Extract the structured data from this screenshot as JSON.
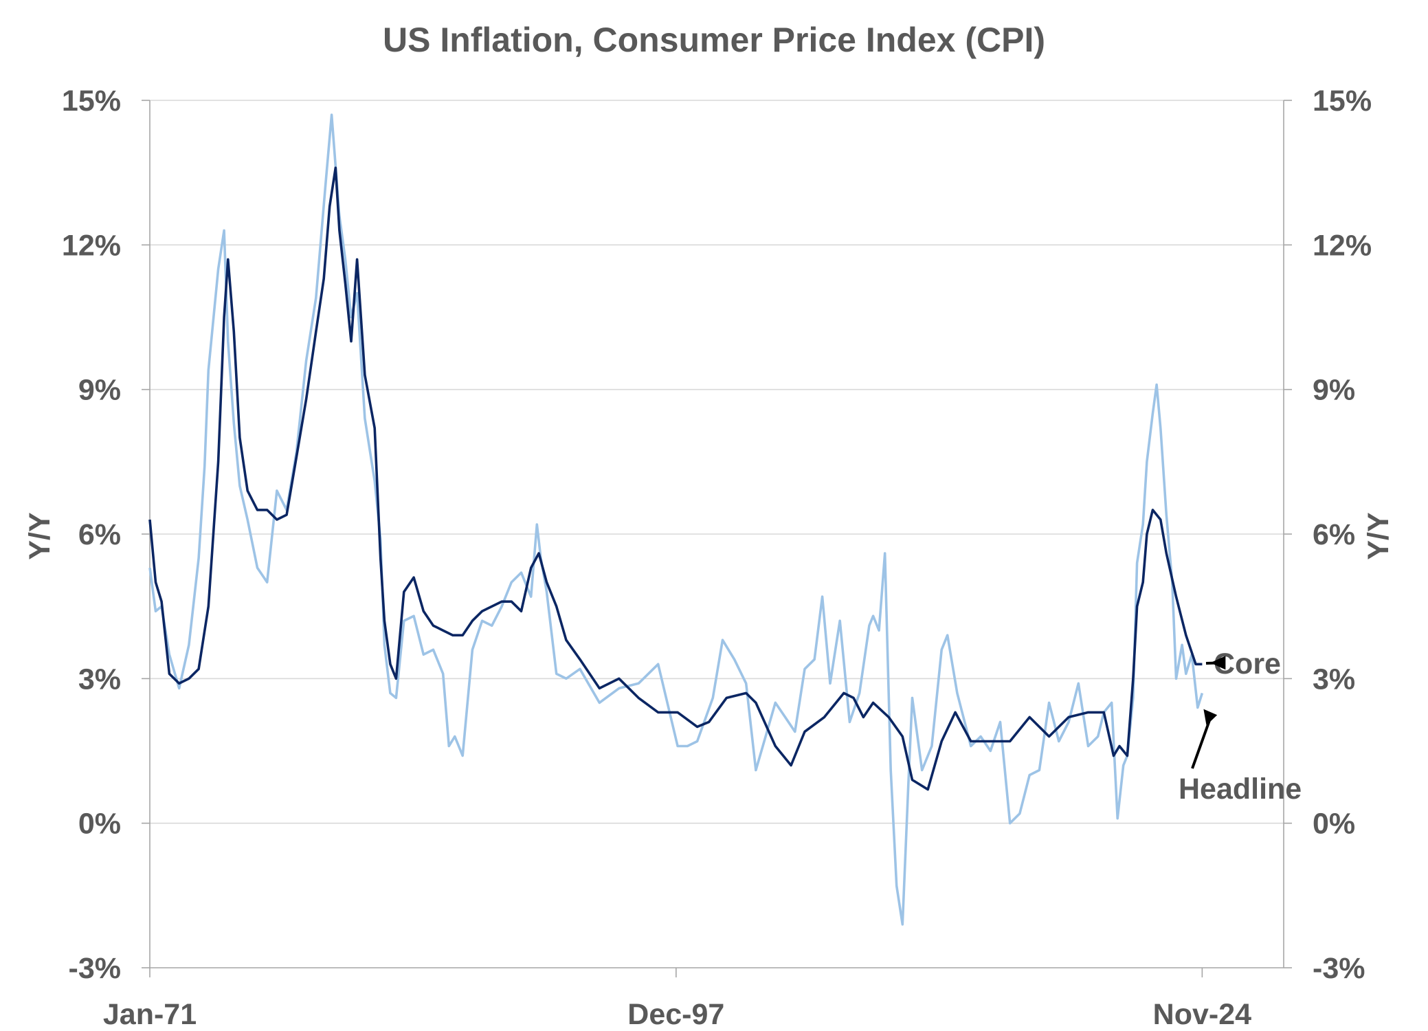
{
  "chart_data": {
    "type": "line",
    "title": "US Inflation, Consumer Price Index (CPI)",
    "ylabel_left": "Y/Y",
    "ylabel_right": "Y/Y",
    "ylim": [
      -3,
      15
    ],
    "yticks": [
      -3,
      0,
      3,
      6,
      9,
      12,
      15
    ],
    "ytick_labels": [
      "-3%",
      "0%",
      "3%",
      "6%",
      "9%",
      "12%",
      "15%"
    ],
    "xlim": [
      1971.0,
      2029.0
    ],
    "xticks": [
      1971.0,
      1997.92,
      2024.83
    ],
    "xtick_labels": [
      "Jan-71",
      "Dec-97",
      "Nov-24"
    ],
    "grid": true,
    "colors": {
      "core": "#0b2663",
      "headline": "#9dc3e6",
      "text": "#595959",
      "arrow": "#000000"
    },
    "annotations": [
      {
        "text": "Core",
        "series": "Core"
      },
      {
        "text": "Headline",
        "series": "Headline"
      }
    ],
    "series": [
      {
        "name": "Core",
        "x": [
          1971.0,
          1971.3,
          1971.6,
          1972.0,
          1972.5,
          1973.0,
          1973.5,
          1974.0,
          1974.5,
          1974.8,
          1975.0,
          1975.3,
          1975.6,
          1976.0,
          1976.5,
          1977.0,
          1977.5,
          1978.0,
          1978.5,
          1979.0,
          1979.5,
          1979.9,
          1980.2,
          1980.5,
          1980.7,
          1981.0,
          1981.3,
          1981.6,
          1982.0,
          1982.5,
          1982.8,
          1983.0,
          1983.3,
          1983.6,
          1984.0,
          1984.5,
          1985.0,
          1985.5,
          1986.0,
          1986.5,
          1987.0,
          1987.5,
          1988.0,
          1988.5,
          1989.0,
          1989.5,
          1990.0,
          1990.5,
          1990.9,
          1991.3,
          1991.8,
          1992.3,
          1993.0,
          1994.0,
          1995.0,
          1996.0,
          1997.0,
          1998.0,
          1999.0,
          1999.6,
          2000.5,
          2001.5,
          2002.0,
          2003.0,
          2003.8,
          2004.5,
          2005.5,
          2006.5,
          2007.0,
          2007.5,
          2008.0,
          2008.8,
          2009.5,
          2010.0,
          2010.8,
          2011.5,
          2012.2,
          2013.0,
          2014.0,
          2015.0,
          2016.0,
          2017.0,
          2018.0,
          2019.0,
          2019.8,
          2020.3,
          2020.6,
          2021.0,
          2021.3,
          2021.5,
          2021.8,
          2022.0,
          2022.3,
          2022.7,
          2023.0,
          2023.5,
          2024.0,
          2024.5,
          2024.83
        ],
        "values": [
          6.3,
          5.0,
          4.6,
          3.1,
          2.9,
          3.0,
          3.2,
          4.5,
          7.5,
          10.5,
          11.7,
          10.2,
          8.0,
          6.9,
          6.5,
          6.5,
          6.3,
          6.4,
          7.6,
          8.8,
          10.2,
          11.3,
          12.8,
          13.6,
          12.3,
          11.2,
          10.0,
          11.7,
          9.3,
          8.2,
          5.5,
          4.2,
          3.3,
          3.0,
          4.8,
          5.1,
          4.4,
          4.1,
          4.0,
          3.9,
          3.9,
          4.2,
          4.4,
          4.5,
          4.6,
          4.6,
          4.4,
          5.3,
          5.6,
          5.0,
          4.5,
          3.8,
          3.4,
          2.8,
          3.0,
          2.6,
          2.3,
          2.3,
          2.0,
          2.1,
          2.6,
          2.7,
          2.5,
          1.6,
          1.2,
          1.9,
          2.2,
          2.7,
          2.6,
          2.2,
          2.5,
          2.2,
          1.8,
          0.9,
          0.7,
          1.7,
          2.3,
          1.7,
          1.7,
          1.7,
          2.2,
          1.8,
          2.2,
          2.3,
          2.3,
          1.4,
          1.6,
          1.4,
          3.0,
          4.5,
          5.0,
          6.0,
          6.5,
          6.3,
          5.6,
          4.7,
          3.9,
          3.3,
          3.3
        ]
      },
      {
        "name": "Headline",
        "x": [
          1971.0,
          1971.3,
          1971.6,
          1972.0,
          1972.5,
          1973.0,
          1973.5,
          1973.8,
          1974.0,
          1974.5,
          1974.8,
          1975.0,
          1975.3,
          1975.6,
          1976.0,
          1976.5,
          1977.0,
          1977.5,
          1978.0,
          1978.5,
          1979.0,
          1979.5,
          1980.0,
          1980.3,
          1980.7,
          1981.0,
          1981.3,
          1981.6,
          1982.0,
          1982.5,
          1982.8,
          1983.0,
          1983.3,
          1983.6,
          1984.0,
          1984.5,
          1985.0,
          1985.5,
          1986.0,
          1986.3,
          1986.6,
          1987.0,
          1987.5,
          1988.0,
          1988.5,
          1989.0,
          1989.5,
          1990.0,
          1990.5,
          1990.8,
          1991.0,
          1991.3,
          1991.8,
          1992.3,
          1993.0,
          1994.0,
          1995.0,
          1996.0,
          1997.0,
          1998.0,
          1998.5,
          1999.0,
          1999.8,
          2000.3,
          2000.9,
          2001.5,
          2002.0,
          2002.5,
          2003.0,
          2003.5,
          2004.0,
          2004.5,
          2005.0,
          2005.4,
          2005.8,
          2006.3,
          2006.8,
          2007.3,
          2007.8,
          2008.0,
          2008.3,
          2008.6,
          2008.9,
          2009.2,
          2009.5,
          2009.8,
          2010.0,
          2010.5,
          2011.0,
          2011.5,
          2011.8,
          2012.3,
          2013.0,
          2013.5,
          2014.0,
          2014.5,
          2015.0,
          2015.5,
          2016.0,
          2016.5,
          2017.0,
          2017.5,
          2018.0,
          2018.5,
          2019.0,
          2019.5,
          2019.8,
          2020.2,
          2020.5,
          2020.8,
          2021.0,
          2021.3,
          2021.5,
          2021.8,
          2022.0,
          2022.3,
          2022.5,
          2022.7,
          2023.0,
          2023.3,
          2023.5,
          2023.8,
          2024.0,
          2024.3,
          2024.6,
          2024.83
        ],
        "values": [
          5.3,
          4.4,
          4.5,
          3.5,
          2.8,
          3.7,
          5.5,
          7.4,
          9.4,
          11.5,
          12.3,
          10.0,
          8.3,
          7.0,
          6.3,
          5.3,
          5.0,
          6.9,
          6.5,
          7.7,
          9.6,
          10.9,
          13.3,
          14.7,
          12.6,
          11.7,
          10.5,
          11.0,
          8.4,
          7.1,
          5.9,
          3.7,
          2.7,
          2.6,
          4.2,
          4.3,
          3.5,
          3.6,
          3.1,
          1.6,
          1.8,
          1.4,
          3.6,
          4.2,
          4.1,
          4.5,
          5.0,
          5.2,
          4.7,
          6.2,
          5.5,
          4.8,
          3.1,
          3.0,
          3.2,
          2.5,
          2.8,
          2.9,
          3.3,
          1.6,
          1.6,
          1.7,
          2.6,
          3.8,
          3.4,
          2.9,
          1.1,
          1.8,
          2.5,
          2.2,
          1.9,
          3.2,
          3.4,
          4.7,
          2.9,
          4.2,
          2.1,
          2.7,
          4.1,
          4.3,
          4.0,
          5.6,
          1.1,
          -1.3,
          -2.1,
          0.8,
          2.6,
          1.1,
          1.6,
          3.6,
          3.9,
          2.7,
          1.6,
          1.8,
          1.5,
          2.1,
          0.0,
          0.2,
          1.0,
          1.1,
          2.5,
          1.7,
          2.1,
          2.9,
          1.6,
          1.8,
          2.3,
          2.5,
          0.1,
          1.2,
          1.4,
          2.6,
          5.4,
          6.2,
          7.5,
          8.5,
          9.1,
          8.2,
          6.4,
          5.0,
          3.0,
          3.7,
          3.1,
          3.5,
          2.4,
          2.7
        ]
      }
    ]
  }
}
